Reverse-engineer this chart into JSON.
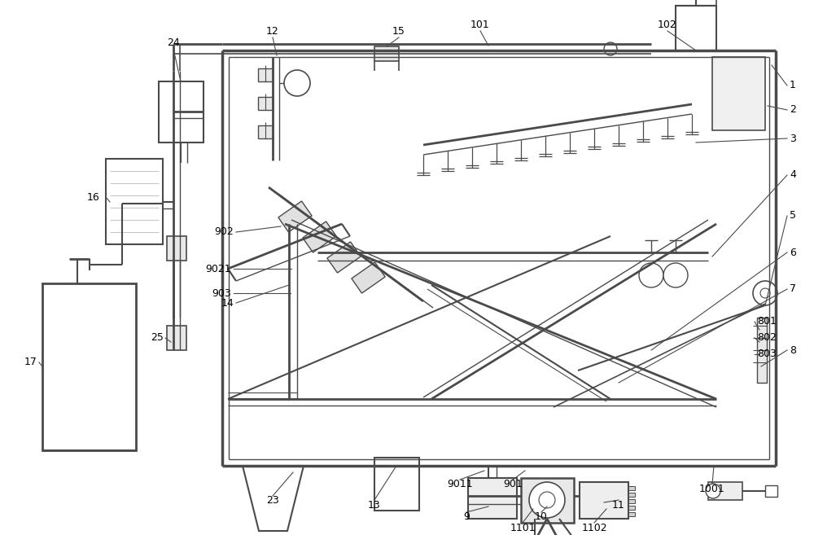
{
  "bg_color": "#ffffff",
  "lc": "#4a4a4a",
  "lc_thin": "#6a6a6a"
}
